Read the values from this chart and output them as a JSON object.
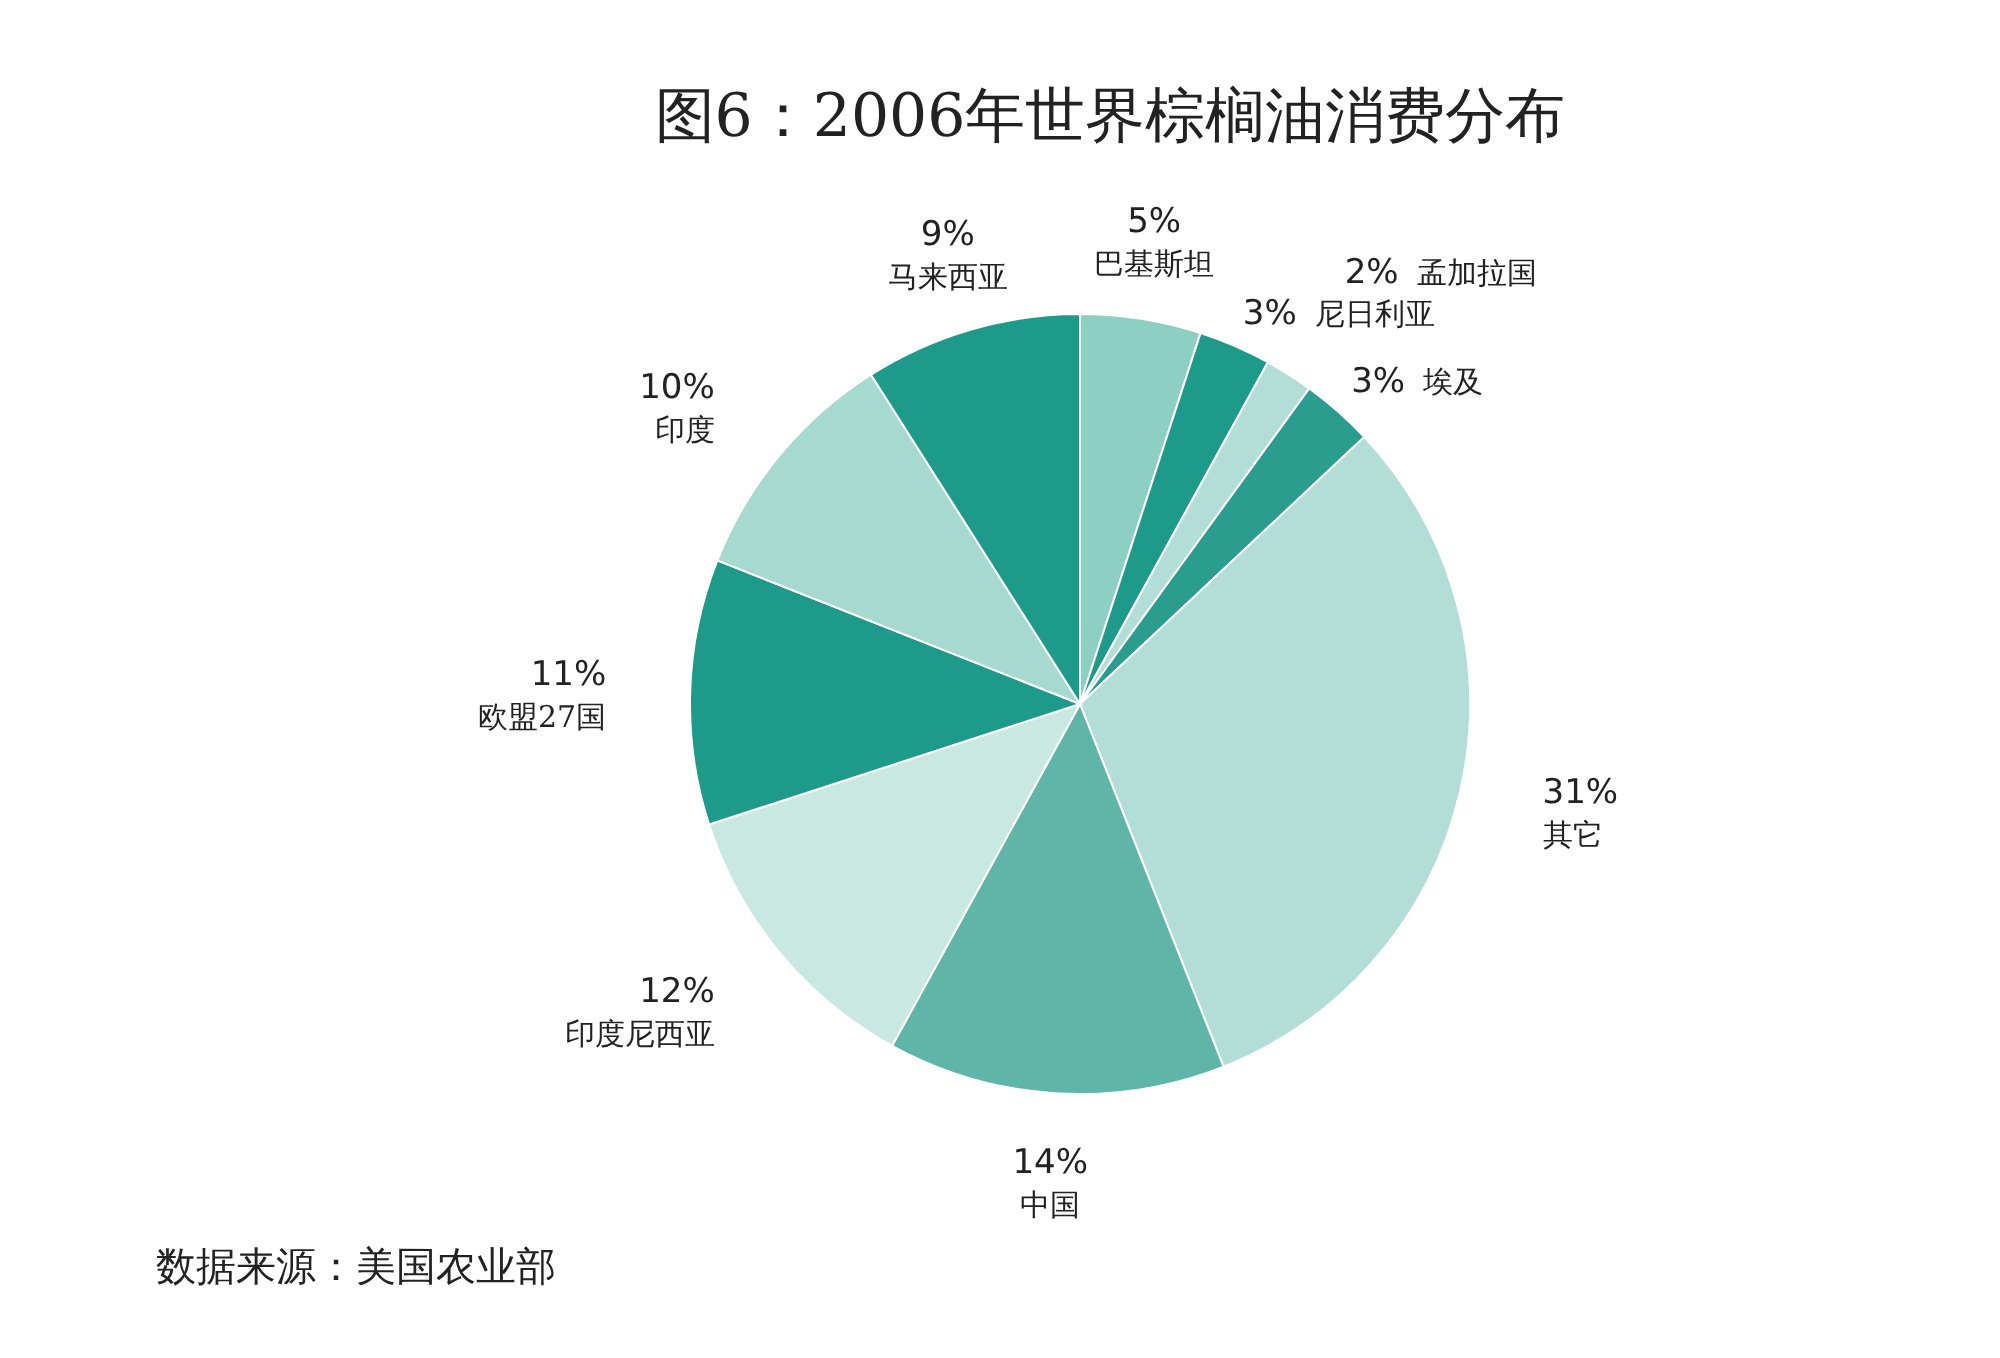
{
  "chart_data": {
    "type": "pie",
    "title": "图6：2006年世界棕榈油消费分布",
    "categories": [
      "巴基斯坦",
      "尼日利亚",
      "孟加拉国",
      "埃及",
      "其它",
      "中国",
      "印度尼西亚",
      "欧盟27国",
      "印度",
      "马来西亚"
    ],
    "values": [
      5,
      3,
      2,
      3,
      31,
      14,
      12,
      11,
      10,
      9
    ],
    "colors": [
      "#8ecfc3",
      "#1d9a8a",
      "#b3ded7",
      "#2a9d8f",
      "#b3ded7",
      "#5fb5a8",
      "#c9e8e2",
      "#1d9a8a",
      "#a6d9d0",
      "#1d9a8a"
    ],
    "value_labels": [
      "5%",
      "3%",
      "2%",
      "3%",
      "31%",
      "14%",
      "12%",
      "11%",
      "10%",
      "9%"
    ],
    "annotations": [
      "数据来源：美国农业部"
    ]
  }
}
